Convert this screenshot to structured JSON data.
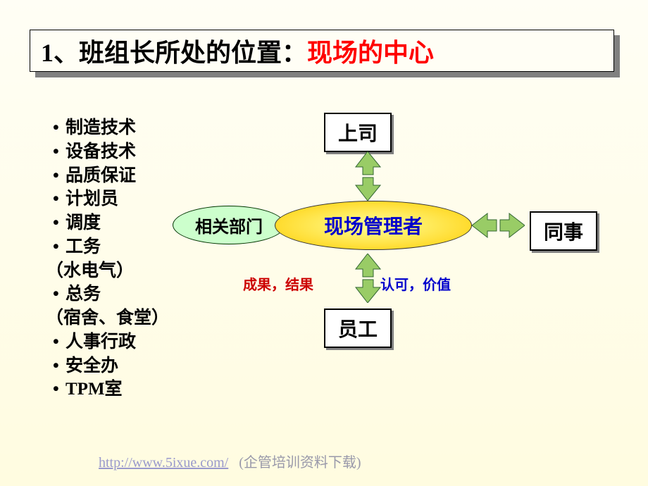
{
  "title": {
    "black": "1、班组长所处的位置：",
    "red": "现场的中心"
  },
  "bullets": [
    {
      "type": "bullet",
      "text": "制造技术"
    },
    {
      "type": "bullet",
      "text": "设备技术"
    },
    {
      "type": "bullet",
      "text": "品质保证"
    },
    {
      "type": "bullet",
      "text": "计划员"
    },
    {
      "type": "bullet",
      "text": "调度"
    },
    {
      "type": "bullet",
      "text": "工务"
    },
    {
      "type": "paren",
      "text": "（水电气）"
    },
    {
      "type": "bullet",
      "text": "总务"
    },
    {
      "type": "paren",
      "text": "（宿舍、食堂）"
    },
    {
      "type": "bullet",
      "text": "人事行政"
    },
    {
      "type": "bullet",
      "text": "安全办"
    },
    {
      "type": "bullet",
      "text": "TPM室"
    }
  ],
  "diagram": {
    "center": "现场管理者",
    "dept_oval": "相关部门",
    "nodes": {
      "top": "上司",
      "bottom": "员工",
      "right": "同事"
    },
    "labels": {
      "red": "成果，结果",
      "blue": "认可，价值"
    },
    "colors": {
      "arrow_fill": "#99cc66",
      "arrow_stroke": "#336633",
      "oval_fill": "#ccffcc",
      "center_grad_inner": "#ffff99",
      "center_grad_outer": "#ffcc00",
      "node_bg": "#ffffff",
      "node_border": "#000000",
      "shadow": "#808080"
    }
  },
  "footer": {
    "link_text": "http://www.5ixue.com/",
    "link_href": "http://www.5ixue.com/",
    "text": "(企管培训资料下载)"
  }
}
